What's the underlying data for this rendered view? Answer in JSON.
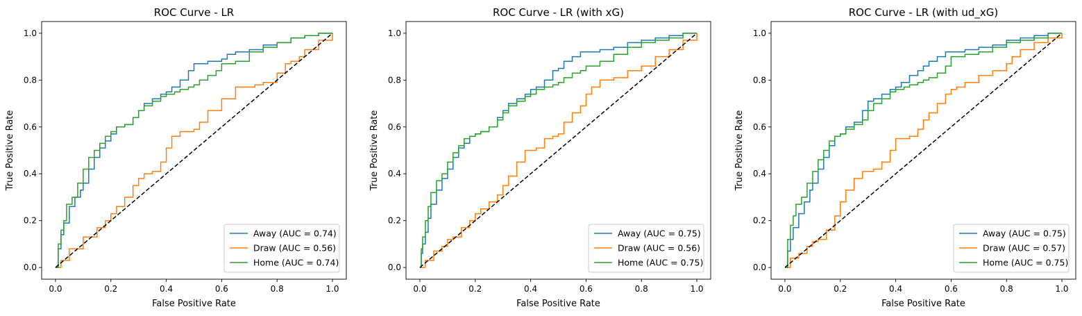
{
  "chart_data": [
    {
      "type": "line",
      "title": "ROC Curve - LR",
      "xlabel": "False Positive Rate",
      "ylabel": "True Positive Rate",
      "xlim": [
        -0.05,
        1.05
      ],
      "ylim": [
        -0.05,
        1.05
      ],
      "xticks": [
        "0.0",
        "0.2",
        "0.4",
        "0.6",
        "0.8",
        "1.0"
      ],
      "yticks": [
        "0.0",
        "0.2",
        "0.4",
        "0.6",
        "0.8",
        "1.0"
      ],
      "grid": false,
      "legend_position": "lower right",
      "series": [
        {
          "name": "Away (AUC = 0.74)",
          "color": "#1f77b4",
          "x": [
            0,
            0.01,
            0.02,
            0.03,
            0.05,
            0.07,
            0.09,
            0.1,
            0.12,
            0.14,
            0.16,
            0.18,
            0.2,
            0.22,
            0.25,
            0.28,
            0.3,
            0.32,
            0.35,
            0.38,
            0.4,
            0.42,
            0.45,
            0.48,
            0.5,
            0.52,
            0.55,
            0.58,
            0.6,
            0.62,
            0.65,
            0.7,
            0.75,
            0.8,
            0.85,
            0.9,
            0.95,
            1.0
          ],
          "y": [
            0,
            0.08,
            0.14,
            0.19,
            0.26,
            0.3,
            0.33,
            0.36,
            0.42,
            0.47,
            0.51,
            0.54,
            0.57,
            0.6,
            0.61,
            0.64,
            0.67,
            0.7,
            0.72,
            0.74,
            0.75,
            0.77,
            0.8,
            0.84,
            0.87,
            0.87,
            0.88,
            0.88,
            0.89,
            0.91,
            0.92,
            0.93,
            0.95,
            0.96,
            0.98,
            0.99,
            1.0,
            1.0
          ]
        },
        {
          "name": "Draw (AUC = 0.56)",
          "color": "#ff7f0e",
          "x": [
            0,
            0.02,
            0.05,
            0.1,
            0.15,
            0.18,
            0.2,
            0.22,
            0.25,
            0.28,
            0.3,
            0.32,
            0.35,
            0.38,
            0.4,
            0.42,
            0.45,
            0.48,
            0.5,
            0.52,
            0.55,
            0.6,
            0.65,
            0.7,
            0.72,
            0.75,
            0.8,
            0.83,
            0.85,
            0.88,
            0.9,
            0.95,
            1.0
          ],
          "y": [
            0,
            0.03,
            0.08,
            0.13,
            0.17,
            0.2,
            0.23,
            0.26,
            0.3,
            0.35,
            0.38,
            0.4,
            0.41,
            0.45,
            0.51,
            0.56,
            0.58,
            0.58,
            0.59,
            0.62,
            0.67,
            0.72,
            0.77,
            0.77,
            0.78,
            0.79,
            0.83,
            0.87,
            0.88,
            0.9,
            0.93,
            0.97,
            1.0
          ]
        },
        {
          "name": "Home (AUC = 0.74)",
          "color": "#2ca02c",
          "x": [
            0,
            0.01,
            0.02,
            0.03,
            0.04,
            0.06,
            0.08,
            0.1,
            0.12,
            0.14,
            0.16,
            0.18,
            0.2,
            0.22,
            0.25,
            0.28,
            0.3,
            0.32,
            0.35,
            0.38,
            0.4,
            0.43,
            0.45,
            0.48,
            0.5,
            0.52,
            0.55,
            0.58,
            0.6,
            0.65,
            0.7,
            0.75,
            0.8,
            0.85,
            0.9,
            0.95,
            1.0
          ],
          "y": [
            0,
            0.1,
            0.16,
            0.2,
            0.27,
            0.3,
            0.36,
            0.42,
            0.47,
            0.5,
            0.53,
            0.56,
            0.58,
            0.6,
            0.61,
            0.64,
            0.67,
            0.69,
            0.71,
            0.73,
            0.74,
            0.75,
            0.76,
            0.77,
            0.78,
            0.8,
            0.82,
            0.84,
            0.87,
            0.88,
            0.92,
            0.94,
            0.96,
            0.98,
            0.99,
            1.0,
            1.0
          ]
        },
        {
          "name": "",
          "color": "#000000",
          "dashed": true,
          "x": [
            0,
            1
          ],
          "y": [
            0,
            1
          ]
        }
      ]
    },
    {
      "type": "line",
      "title": "ROC Curve - LR (with xG)",
      "xlabel": "False Positive Rate",
      "ylabel": "True Positive Rate",
      "xlim": [
        -0.05,
        1.05
      ],
      "ylim": [
        -0.05,
        1.05
      ],
      "xticks": [
        "0.0",
        "0.2",
        "0.4",
        "0.6",
        "0.8",
        "1.0"
      ],
      "yticks": [
        "0.0",
        "0.2",
        "0.4",
        "0.6",
        "0.8",
        "1.0"
      ],
      "grid": false,
      "legend_position": "lower right",
      "series": [
        {
          "name": "Away (AUC = 0.75)",
          "color": "#1f77b4",
          "x": [
            0,
            0.005,
            0.01,
            0.02,
            0.03,
            0.04,
            0.06,
            0.08,
            0.1,
            0.12,
            0.14,
            0.16,
            0.18,
            0.2,
            0.22,
            0.25,
            0.28,
            0.3,
            0.32,
            0.35,
            0.38,
            0.4,
            0.42,
            0.45,
            0.48,
            0.5,
            0.52,
            0.55,
            0.58,
            0.6,
            0.65,
            0.7,
            0.75,
            0.8,
            0.85,
            0.9,
            0.95,
            1.0
          ],
          "y": [
            0,
            0.06,
            0.1,
            0.15,
            0.21,
            0.27,
            0.33,
            0.38,
            0.42,
            0.47,
            0.51,
            0.53,
            0.56,
            0.57,
            0.58,
            0.6,
            0.64,
            0.67,
            0.7,
            0.72,
            0.74,
            0.76,
            0.77,
            0.8,
            0.84,
            0.85,
            0.88,
            0.9,
            0.92,
            0.92,
            0.93,
            0.94,
            0.96,
            0.97,
            0.98,
            0.99,
            1.0,
            1.0
          ]
        },
        {
          "name": "Draw (AUC = 0.56)",
          "color": "#ff7f0e",
          "x": [
            0,
            0.02,
            0.05,
            0.08,
            0.1,
            0.12,
            0.15,
            0.18,
            0.2,
            0.22,
            0.25,
            0.28,
            0.3,
            0.32,
            0.35,
            0.38,
            0.4,
            0.42,
            0.45,
            0.48,
            0.5,
            0.52,
            0.55,
            0.58,
            0.6,
            0.62,
            0.65,
            0.7,
            0.75,
            0.8,
            0.85,
            0.9,
            0.95,
            1.0
          ],
          "y": [
            0,
            0.03,
            0.07,
            0.09,
            0.12,
            0.13,
            0.17,
            0.2,
            0.23,
            0.25,
            0.28,
            0.31,
            0.35,
            0.39,
            0.45,
            0.5,
            0.5,
            0.51,
            0.55,
            0.56,
            0.57,
            0.62,
            0.66,
            0.69,
            0.74,
            0.77,
            0.8,
            0.81,
            0.84,
            0.86,
            0.9,
            0.93,
            0.97,
            1.0
          ]
        },
        {
          "name": "Home (AUC = 0.75)",
          "color": "#2ca02c",
          "x": [
            0,
            0.005,
            0.01,
            0.02,
            0.03,
            0.04,
            0.06,
            0.08,
            0.1,
            0.12,
            0.14,
            0.16,
            0.18,
            0.2,
            0.22,
            0.25,
            0.28,
            0.3,
            0.32,
            0.35,
            0.38,
            0.4,
            0.42,
            0.45,
            0.48,
            0.5,
            0.52,
            0.55,
            0.58,
            0.6,
            0.65,
            0.7,
            0.75,
            0.8,
            0.85,
            0.9,
            0.95,
            1.0
          ],
          "y": [
            0,
            0.08,
            0.13,
            0.2,
            0.26,
            0.32,
            0.37,
            0.4,
            0.45,
            0.49,
            0.52,
            0.55,
            0.56,
            0.57,
            0.58,
            0.6,
            0.63,
            0.66,
            0.69,
            0.71,
            0.73,
            0.74,
            0.76,
            0.77,
            0.78,
            0.79,
            0.81,
            0.83,
            0.84,
            0.86,
            0.88,
            0.91,
            0.94,
            0.96,
            0.97,
            0.98,
            1.0,
            1.0
          ]
        },
        {
          "name": "",
          "color": "#000000",
          "dashed": true,
          "x": [
            0,
            1
          ],
          "y": [
            0,
            1
          ]
        }
      ]
    },
    {
      "type": "line",
      "title": "ROC Curve - LR (with ud_xG)",
      "xlabel": "False Positive Rate",
      "ylabel": "True Positive Rate",
      "xlim": [
        -0.05,
        1.05
      ],
      "ylim": [
        -0.05,
        1.05
      ],
      "xticks": [
        "0.0",
        "0.2",
        "0.4",
        "0.6",
        "0.8",
        "1.0"
      ],
      "yticks": [
        "0.0",
        "0.2",
        "0.4",
        "0.6",
        "0.8",
        "1.0"
      ],
      "grid": false,
      "legend_position": "lower right",
      "series": [
        {
          "name": "Away (AUC = 0.75)",
          "color": "#1f77b4",
          "x": [
            0,
            0.01,
            0.02,
            0.03,
            0.05,
            0.07,
            0.09,
            0.1,
            0.12,
            0.14,
            0.16,
            0.18,
            0.2,
            0.22,
            0.25,
            0.28,
            0.3,
            0.32,
            0.35,
            0.38,
            0.4,
            0.42,
            0.45,
            0.48,
            0.5,
            0.52,
            0.55,
            0.58,
            0.6,
            0.65,
            0.7,
            0.75,
            0.8,
            0.85,
            0.9,
            0.95,
            1.0
          ],
          "y": [
            0,
            0.07,
            0.12,
            0.17,
            0.23,
            0.28,
            0.33,
            0.36,
            0.42,
            0.47,
            0.52,
            0.56,
            0.57,
            0.6,
            0.62,
            0.67,
            0.71,
            0.72,
            0.74,
            0.76,
            0.77,
            0.79,
            0.82,
            0.84,
            0.86,
            0.88,
            0.9,
            0.92,
            0.92,
            0.93,
            0.94,
            0.95,
            0.97,
            0.98,
            0.99,
            1.0,
            1.0
          ]
        },
        {
          "name": "Draw (AUC = 0.57)",
          "color": "#ff7f0e",
          "x": [
            0,
            0.02,
            0.05,
            0.08,
            0.1,
            0.12,
            0.15,
            0.18,
            0.2,
            0.22,
            0.25,
            0.28,
            0.3,
            0.32,
            0.35,
            0.38,
            0.4,
            0.42,
            0.45,
            0.48,
            0.5,
            0.52,
            0.55,
            0.58,
            0.6,
            0.62,
            0.65,
            0.7,
            0.75,
            0.8,
            0.82,
            0.85,
            0.9,
            0.95,
            1.0
          ],
          "y": [
            0,
            0.04,
            0.06,
            0.09,
            0.11,
            0.12,
            0.16,
            0.22,
            0.28,
            0.33,
            0.38,
            0.41,
            0.41,
            0.42,
            0.45,
            0.5,
            0.55,
            0.55,
            0.56,
            0.59,
            0.63,
            0.66,
            0.7,
            0.74,
            0.76,
            0.77,
            0.79,
            0.82,
            0.84,
            0.87,
            0.9,
            0.93,
            0.96,
            0.98,
            1.0
          ]
        },
        {
          "name": "Home (AUC = 0.75)",
          "color": "#2ca02c",
          "x": [
            0,
            0.01,
            0.02,
            0.03,
            0.04,
            0.06,
            0.08,
            0.1,
            0.12,
            0.14,
            0.16,
            0.18,
            0.2,
            0.22,
            0.25,
            0.28,
            0.3,
            0.32,
            0.35,
            0.38,
            0.4,
            0.43,
            0.45,
            0.48,
            0.5,
            0.52,
            0.55,
            0.58,
            0.6,
            0.65,
            0.7,
            0.75,
            0.8,
            0.85,
            0.9,
            0.95,
            1.0
          ],
          "y": [
            0,
            0.12,
            0.18,
            0.22,
            0.27,
            0.3,
            0.36,
            0.41,
            0.46,
            0.5,
            0.54,
            0.56,
            0.57,
            0.59,
            0.61,
            0.63,
            0.67,
            0.7,
            0.72,
            0.75,
            0.76,
            0.77,
            0.78,
            0.79,
            0.8,
            0.81,
            0.83,
            0.86,
            0.9,
            0.91,
            0.92,
            0.94,
            0.96,
            0.97,
            0.98,
            1.0,
            1.0
          ]
        },
        {
          "name": "",
          "color": "#000000",
          "dashed": true,
          "x": [
            0,
            1
          ],
          "y": [
            0,
            1
          ]
        }
      ]
    }
  ]
}
